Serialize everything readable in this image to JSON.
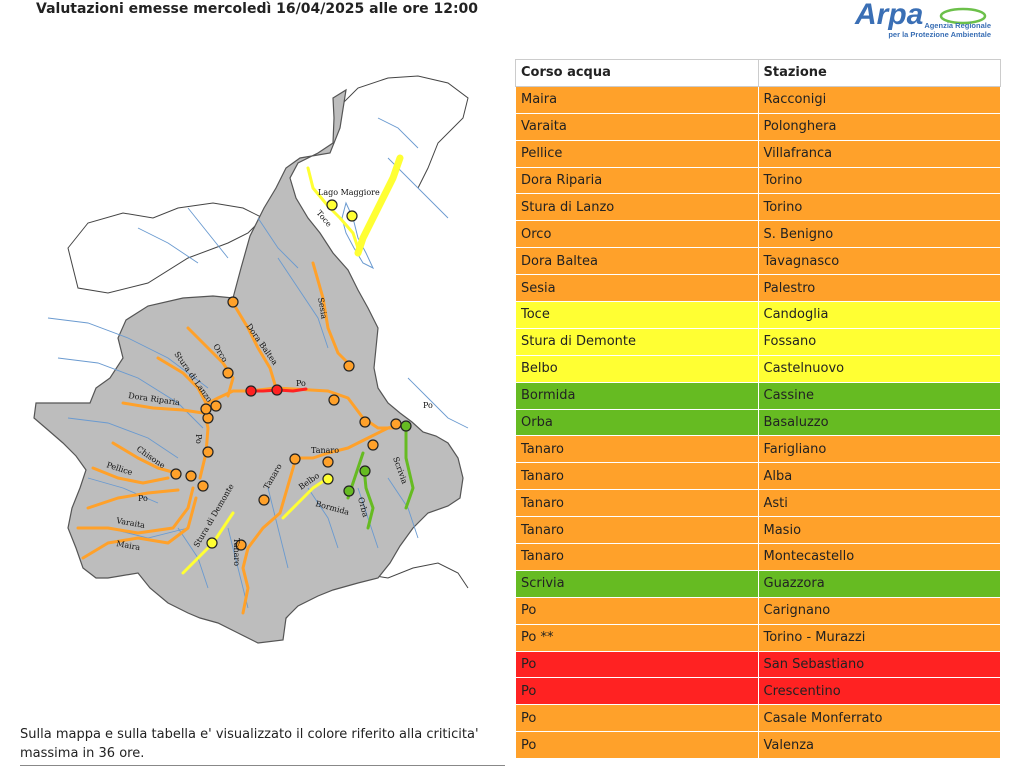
{
  "header": {
    "title": "Valutazioni emesse mercoledì 16/04/2025 alle ore 12:00"
  },
  "logo": {
    "wordmark": "Arpa",
    "line1": "Agenzia Regionale",
    "line2": "per la Protezione Ambientale"
  },
  "colors": {
    "orange": "#ffa12a",
    "yellow": "#ffff33",
    "green": "#66bb22",
    "red": "#ff2222",
    "region": "#bdbdbd",
    "river": "#6a9ad0"
  },
  "map": {
    "labels": {
      "lago_maggiore": "Lago Maggiore",
      "toce": "Toce",
      "sesia": "Sesia",
      "dora_baltea": "Dora Baltea",
      "orco": "Orco",
      "stura_di_lanzo": "Stura di Lanzo",
      "dora_riparia": "Dora Riparia",
      "po_north": "Po",
      "po_east": "Po",
      "po_south": "Po",
      "po_west": "Po",
      "chisone": "Chisone",
      "pellice": "Pellice",
      "varaita": "Varaita",
      "maira": "Maira",
      "stura_di_demonte": "Stura di Demonte",
      "tanaro_1": "Tanaro",
      "tanaro_2": "Tanaro",
      "tanaro_3": "Tanaro",
      "belbo": "Belbo",
      "bormida": "Bormida",
      "orba": "Orba",
      "scrivia": "Scrivia"
    }
  },
  "note": {
    "text": "Sulla mappa e sulla tabella e' visualizzato il colore riferito alla criticita' massima in 36 ore."
  },
  "table": {
    "headers": [
      "Corso acqua",
      "Stazione"
    ],
    "rows": [
      {
        "corso": "Maira",
        "stazione": "Racconigi",
        "level": "orange"
      },
      {
        "corso": "Varaita",
        "stazione": "Polonghera",
        "level": "orange"
      },
      {
        "corso": "Pellice",
        "stazione": "Villafranca",
        "level": "orange"
      },
      {
        "corso": "Dora Riparia",
        "stazione": "Torino",
        "level": "orange"
      },
      {
        "corso": "Stura di Lanzo",
        "stazione": "Torino",
        "level": "orange"
      },
      {
        "corso": "Orco",
        "stazione": "S. Benigno",
        "level": "orange"
      },
      {
        "corso": "Dora Baltea",
        "stazione": "Tavagnasco",
        "level": "orange"
      },
      {
        "corso": "Sesia",
        "stazione": "Palestro",
        "level": "orange"
      },
      {
        "corso": "Toce",
        "stazione": "Candoglia",
        "level": "yellow"
      },
      {
        "corso": "Stura di Demonte",
        "stazione": "Fossano",
        "level": "yellow"
      },
      {
        "corso": "Belbo",
        "stazione": "Castelnuovo",
        "level": "yellow"
      },
      {
        "corso": "Bormida",
        "stazione": "Cassine",
        "level": "green"
      },
      {
        "corso": "Orba",
        "stazione": "Basaluzzo",
        "level": "green"
      },
      {
        "corso": "Tanaro",
        "stazione": "Farigliano",
        "level": "orange"
      },
      {
        "corso": "Tanaro",
        "stazione": "Alba",
        "level": "orange"
      },
      {
        "corso": "Tanaro",
        "stazione": "Asti",
        "level": "orange"
      },
      {
        "corso": "Tanaro",
        "stazione": "Masio",
        "level": "orange"
      },
      {
        "corso": "Tanaro",
        "stazione": "Montecastello",
        "level": "orange"
      },
      {
        "corso": "Scrivia",
        "stazione": "Guazzora",
        "level": "green"
      },
      {
        "corso": "Po",
        "stazione": "Carignano",
        "level": "orange"
      },
      {
        "corso": "Po **",
        "stazione": "Torino - Murazzi",
        "level": "orange"
      },
      {
        "corso": "Po",
        "stazione": "San Sebastiano",
        "level": "red"
      },
      {
        "corso": "Po",
        "stazione": "Crescentino",
        "level": "red"
      },
      {
        "corso": "Po",
        "stazione": "Casale Monferrato",
        "level": "orange"
      },
      {
        "corso": "Po",
        "stazione": "Valenza",
        "level": "orange"
      }
    ]
  }
}
